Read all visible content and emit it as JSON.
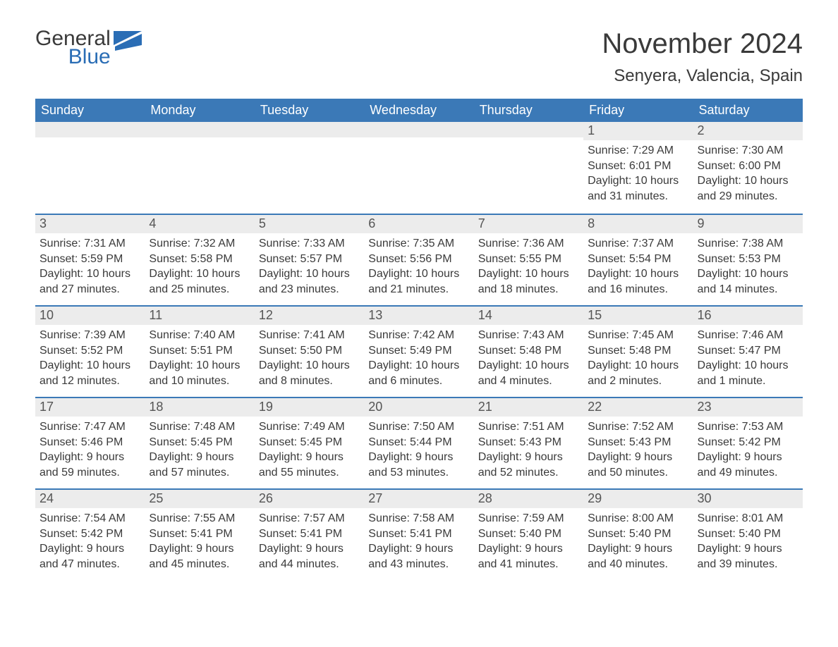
{
  "logo": {
    "word1": "General",
    "word2": "Blue",
    "flag_color": "#2a6db5"
  },
  "title": "November 2024",
  "location": "Senyera, Valencia, Spain",
  "colors": {
    "header_bg": "#3b79b7",
    "header_text": "#ffffff",
    "band_bg": "#ececec",
    "text": "#3a3a3a",
    "rule": "#3b79b7"
  },
  "fonts": {
    "title_size_pt": 30,
    "location_size_pt": 18,
    "body_size_pt": 12
  },
  "day_names": [
    "Sunday",
    "Monday",
    "Tuesday",
    "Wednesday",
    "Thursday",
    "Friday",
    "Saturday"
  ],
  "weeks": [
    [
      null,
      null,
      null,
      null,
      null,
      {
        "n": "1",
        "sunrise": "Sunrise: 7:29 AM",
        "sunset": "Sunset: 6:01 PM",
        "d1": "Daylight: 10 hours",
        "d2": "and 31 minutes."
      },
      {
        "n": "2",
        "sunrise": "Sunrise: 7:30 AM",
        "sunset": "Sunset: 6:00 PM",
        "d1": "Daylight: 10 hours",
        "d2": "and 29 minutes."
      }
    ],
    [
      {
        "n": "3",
        "sunrise": "Sunrise: 7:31 AM",
        "sunset": "Sunset: 5:59 PM",
        "d1": "Daylight: 10 hours",
        "d2": "and 27 minutes."
      },
      {
        "n": "4",
        "sunrise": "Sunrise: 7:32 AM",
        "sunset": "Sunset: 5:58 PM",
        "d1": "Daylight: 10 hours",
        "d2": "and 25 minutes."
      },
      {
        "n": "5",
        "sunrise": "Sunrise: 7:33 AM",
        "sunset": "Sunset: 5:57 PM",
        "d1": "Daylight: 10 hours",
        "d2": "and 23 minutes."
      },
      {
        "n": "6",
        "sunrise": "Sunrise: 7:35 AM",
        "sunset": "Sunset: 5:56 PM",
        "d1": "Daylight: 10 hours",
        "d2": "and 21 minutes."
      },
      {
        "n": "7",
        "sunrise": "Sunrise: 7:36 AM",
        "sunset": "Sunset: 5:55 PM",
        "d1": "Daylight: 10 hours",
        "d2": "and 18 minutes."
      },
      {
        "n": "8",
        "sunrise": "Sunrise: 7:37 AM",
        "sunset": "Sunset: 5:54 PM",
        "d1": "Daylight: 10 hours",
        "d2": "and 16 minutes."
      },
      {
        "n": "9",
        "sunrise": "Sunrise: 7:38 AM",
        "sunset": "Sunset: 5:53 PM",
        "d1": "Daylight: 10 hours",
        "d2": "and 14 minutes."
      }
    ],
    [
      {
        "n": "10",
        "sunrise": "Sunrise: 7:39 AM",
        "sunset": "Sunset: 5:52 PM",
        "d1": "Daylight: 10 hours",
        "d2": "and 12 minutes."
      },
      {
        "n": "11",
        "sunrise": "Sunrise: 7:40 AM",
        "sunset": "Sunset: 5:51 PM",
        "d1": "Daylight: 10 hours",
        "d2": "and 10 minutes."
      },
      {
        "n": "12",
        "sunrise": "Sunrise: 7:41 AM",
        "sunset": "Sunset: 5:50 PM",
        "d1": "Daylight: 10 hours",
        "d2": "and 8 minutes."
      },
      {
        "n": "13",
        "sunrise": "Sunrise: 7:42 AM",
        "sunset": "Sunset: 5:49 PM",
        "d1": "Daylight: 10 hours",
        "d2": "and 6 minutes."
      },
      {
        "n": "14",
        "sunrise": "Sunrise: 7:43 AM",
        "sunset": "Sunset: 5:48 PM",
        "d1": "Daylight: 10 hours",
        "d2": "and 4 minutes."
      },
      {
        "n": "15",
        "sunrise": "Sunrise: 7:45 AM",
        "sunset": "Sunset: 5:48 PM",
        "d1": "Daylight: 10 hours",
        "d2": "and 2 minutes."
      },
      {
        "n": "16",
        "sunrise": "Sunrise: 7:46 AM",
        "sunset": "Sunset: 5:47 PM",
        "d1": "Daylight: 10 hours",
        "d2": "and 1 minute."
      }
    ],
    [
      {
        "n": "17",
        "sunrise": "Sunrise: 7:47 AM",
        "sunset": "Sunset: 5:46 PM",
        "d1": "Daylight: 9 hours",
        "d2": "and 59 minutes."
      },
      {
        "n": "18",
        "sunrise": "Sunrise: 7:48 AM",
        "sunset": "Sunset: 5:45 PM",
        "d1": "Daylight: 9 hours",
        "d2": "and 57 minutes."
      },
      {
        "n": "19",
        "sunrise": "Sunrise: 7:49 AM",
        "sunset": "Sunset: 5:45 PM",
        "d1": "Daylight: 9 hours",
        "d2": "and 55 minutes."
      },
      {
        "n": "20",
        "sunrise": "Sunrise: 7:50 AM",
        "sunset": "Sunset: 5:44 PM",
        "d1": "Daylight: 9 hours",
        "d2": "and 53 minutes."
      },
      {
        "n": "21",
        "sunrise": "Sunrise: 7:51 AM",
        "sunset": "Sunset: 5:43 PM",
        "d1": "Daylight: 9 hours",
        "d2": "and 52 minutes."
      },
      {
        "n": "22",
        "sunrise": "Sunrise: 7:52 AM",
        "sunset": "Sunset: 5:43 PM",
        "d1": "Daylight: 9 hours",
        "d2": "and 50 minutes."
      },
      {
        "n": "23",
        "sunrise": "Sunrise: 7:53 AM",
        "sunset": "Sunset: 5:42 PM",
        "d1": "Daylight: 9 hours",
        "d2": "and 49 minutes."
      }
    ],
    [
      {
        "n": "24",
        "sunrise": "Sunrise: 7:54 AM",
        "sunset": "Sunset: 5:42 PM",
        "d1": "Daylight: 9 hours",
        "d2": "and 47 minutes."
      },
      {
        "n": "25",
        "sunrise": "Sunrise: 7:55 AM",
        "sunset": "Sunset: 5:41 PM",
        "d1": "Daylight: 9 hours",
        "d2": "and 45 minutes."
      },
      {
        "n": "26",
        "sunrise": "Sunrise: 7:57 AM",
        "sunset": "Sunset: 5:41 PM",
        "d1": "Daylight: 9 hours",
        "d2": "and 44 minutes."
      },
      {
        "n": "27",
        "sunrise": "Sunrise: 7:58 AM",
        "sunset": "Sunset: 5:41 PM",
        "d1": "Daylight: 9 hours",
        "d2": "and 43 minutes."
      },
      {
        "n": "28",
        "sunrise": "Sunrise: 7:59 AM",
        "sunset": "Sunset: 5:40 PM",
        "d1": "Daylight: 9 hours",
        "d2": "and 41 minutes."
      },
      {
        "n": "29",
        "sunrise": "Sunrise: 8:00 AM",
        "sunset": "Sunset: 5:40 PM",
        "d1": "Daylight: 9 hours",
        "d2": "and 40 minutes."
      },
      {
        "n": "30",
        "sunrise": "Sunrise: 8:01 AM",
        "sunset": "Sunset: 5:40 PM",
        "d1": "Daylight: 9 hours",
        "d2": "and 39 minutes."
      }
    ]
  ]
}
